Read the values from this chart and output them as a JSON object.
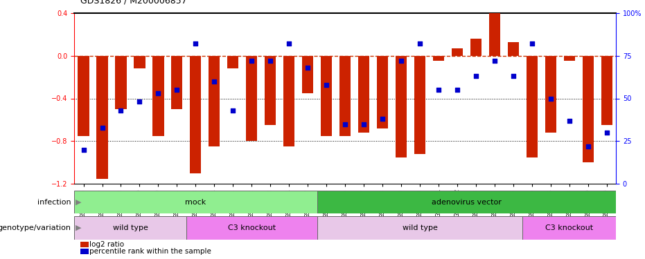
{
  "title": "GDS1826 / M200006857",
  "samples": [
    "GSM87316",
    "GSM87317",
    "GSM93998",
    "GSM93999",
    "GSM94000",
    "GSM94001",
    "GSM93633",
    "GSM93634",
    "GSM93651",
    "GSM93652",
    "GSM93653",
    "GSM93654",
    "GSM93657",
    "GSM86643",
    "GSM87306",
    "GSM87307",
    "GSM87308",
    "GSM87309",
    "GSM87310",
    "GSM87311",
    "GSM87312",
    "GSM87313",
    "GSM87314",
    "GSM87315",
    "GSM93655",
    "GSM93656",
    "GSM93658",
    "GSM93659",
    "GSM93660"
  ],
  "log2_ratio": [
    -0.75,
    -1.15,
    -0.5,
    -0.12,
    -0.75,
    -0.5,
    -1.1,
    -0.85,
    -0.12,
    -0.8,
    -0.65,
    -0.85,
    -0.35,
    -0.75,
    -0.75,
    -0.72,
    -0.68,
    -0.95,
    -0.92,
    -0.05,
    0.07,
    0.16,
    0.4,
    0.13,
    -0.95,
    -0.72,
    -0.05,
    -1.0,
    -0.65
  ],
  "percentile_rank_pct": [
    20,
    33,
    43,
    48,
    53,
    55,
    82,
    60,
    43,
    72,
    72,
    82,
    68,
    58,
    35,
    35,
    38,
    72,
    82,
    55,
    55,
    63,
    72,
    63,
    82,
    50,
    37,
    22,
    30
  ],
  "infection_groups": [
    {
      "label": "mock",
      "start": 0,
      "end": 13,
      "color": "#90EE90"
    },
    {
      "label": "adenovirus vector",
      "start": 13,
      "end": 29,
      "color": "#3CB843"
    }
  ],
  "genotype_groups": [
    {
      "label": "wild type",
      "start": 0,
      "end": 6,
      "color": "#E8C8E8"
    },
    {
      "label": "C3 knockout",
      "start": 6,
      "end": 13,
      "color": "#EE82EE"
    },
    {
      "label": "wild type",
      "start": 13,
      "end": 24,
      "color": "#E8C8E8"
    },
    {
      "label": "C3 knockout",
      "start": 24,
      "end": 29,
      "color": "#EE82EE"
    }
  ],
  "ylim": [
    -1.2,
    0.4
  ],
  "bar_color": "#CC2200",
  "dot_color": "#0000CC",
  "zero_line_color": "#CC3300",
  "background_color": "#FFFFFF",
  "bar_width": 0.6,
  "dot_size": 18
}
